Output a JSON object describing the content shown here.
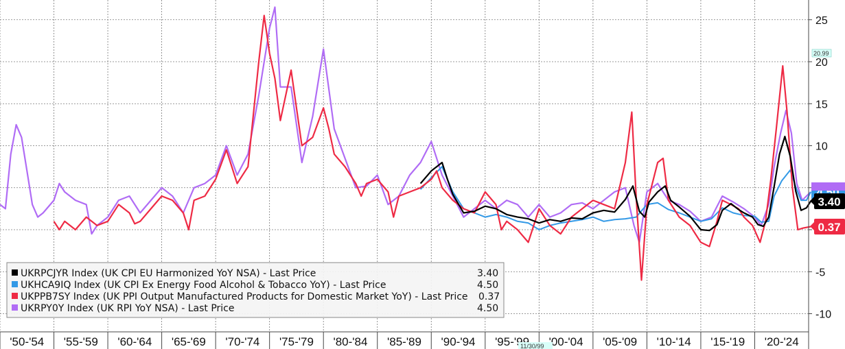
{
  "chart_data": {
    "type": "line",
    "x_range": [
      1950,
      2025
    ],
    "ylim": [
      -11,
      27
    ],
    "y_ticks": [
      -10,
      -5,
      0,
      5,
      10,
      15,
      20,
      25
    ],
    "y_tick_labels": [
      "-10",
      "-5",
      "0",
      "5",
      "10",
      "15",
      "20",
      "25"
    ],
    "x_tick_labels": [
      "'50-'54",
      "'55-'59",
      "'60-'64",
      "'65-'69",
      "'70-'74",
      "'75-'79",
      "'80-'84",
      "'85-'89",
      "'90-'94",
      "'95-'99",
      "'00-'04",
      "'05-'09",
      "'10-'14",
      "'15-'19",
      "'20-'24"
    ],
    "grid": true,
    "legend_position": "bottom-left",
    "annotations": {
      "max_marker": "20.99",
      "crosshair_date": "11/30/99"
    },
    "series": [
      {
        "name": "UKRPCJYR Index (UK CPI EU Harmonized YoY NSA) - Last Price",
        "last_value_label": "3.40",
        "last": 3.4,
        "color": "#000000",
        "points": [
          [
            1989,
            5.5
          ],
          [
            1990,
            7.0
          ],
          [
            1991,
            8.0
          ],
          [
            1991.5,
            6.0
          ],
          [
            1992,
            4.2
          ],
          [
            1993,
            2.0
          ],
          [
            1994,
            2.2
          ],
          [
            1995,
            2.8
          ],
          [
            1996,
            2.5
          ],
          [
            1997,
            1.8
          ],
          [
            1998,
            1.5
          ],
          [
            1999,
            1.3
          ],
          [
            2000,
            0.8
          ],
          [
            2001,
            1.2
          ],
          [
            2002,
            1.0
          ],
          [
            2003,
            1.4
          ],
          [
            2004,
            1.3
          ],
          [
            2005,
            2.0
          ],
          [
            2006,
            2.3
          ],
          [
            2007,
            2.1
          ],
          [
            2008,
            3.6
          ],
          [
            2008.7,
            5.2
          ],
          [
            2009.3,
            2.2
          ],
          [
            2009.8,
            1.5
          ],
          [
            2010.2,
            3.3
          ],
          [
            2011,
            4.5
          ],
          [
            2011.7,
            5.2
          ],
          [
            2012.2,
            3.5
          ],
          [
            2013,
            2.7
          ],
          [
            2014,
            1.6
          ],
          [
            2015,
            0.0
          ],
          [
            2015.8,
            -0.1
          ],
          [
            2016.5,
            0.6
          ],
          [
            2017,
            2.3
          ],
          [
            2017.8,
            3.1
          ],
          [
            2018.5,
            2.4
          ],
          [
            2019,
            2.0
          ],
          [
            2019.8,
            1.5
          ],
          [
            2020.3,
            0.6
          ],
          [
            2020.8,
            0.4
          ],
          [
            2021.3,
            1.5
          ],
          [
            2021.8,
            5.1
          ],
          [
            2022.3,
            9.0
          ],
          [
            2022.8,
            11.1
          ],
          [
            2023.3,
            8.7
          ],
          [
            2023.8,
            4.6
          ],
          [
            2024.3,
            2.3
          ],
          [
            2024.8,
            2.6
          ],
          [
            2025.2,
            3.4
          ]
        ]
      },
      {
        "name": "UKHCA9IQ Index (UK CPI Ex Energy Food Alcohol & Tobacco YoY) - Last Price",
        "last_value_label": "4.50",
        "last": 4.5,
        "color": "#3399e6",
        "points": [
          [
            1989,
            4.8
          ],
          [
            1990,
            6.2
          ],
          [
            1991,
            7.5
          ],
          [
            1992,
            4.5
          ],
          [
            1992.5,
            3.5
          ],
          [
            1993,
            2.5
          ],
          [
            1994,
            2.0
          ],
          [
            1995,
            1.5
          ],
          [
            1996,
            1.8
          ],
          [
            1997,
            1.5
          ],
          [
            1998,
            1.0
          ],
          [
            1999,
            0.8
          ],
          [
            2000,
            0.0
          ],
          [
            2001,
            0.5
          ],
          [
            2002,
            0.8
          ],
          [
            2003,
            1.0
          ],
          [
            2004,
            1.2
          ],
          [
            2005,
            1.5
          ],
          [
            2006,
            1.0
          ],
          [
            2007,
            1.2
          ],
          [
            2008,
            1.3
          ],
          [
            2009,
            1.5
          ],
          [
            2010,
            3.0
          ],
          [
            2011,
            3.2
          ],
          [
            2012,
            2.4
          ],
          [
            2013,
            2.0
          ],
          [
            2014,
            1.5
          ],
          [
            2015,
            1.0
          ],
          [
            2016,
            1.3
          ],
          [
            2017,
            2.6
          ],
          [
            2018,
            2.0
          ],
          [
            2019,
            1.7
          ],
          [
            2020,
            1.6
          ],
          [
            2020.6,
            0.9
          ],
          [
            2021.3,
            1.0
          ],
          [
            2021.8,
            4.0
          ],
          [
            2022.5,
            5.8
          ],
          [
            2023.3,
            7.1
          ],
          [
            2023.8,
            5.1
          ],
          [
            2024.3,
            3.5
          ],
          [
            2024.8,
            3.5
          ],
          [
            2025.2,
            4.5
          ]
        ]
      },
      {
        "name": "UKPPB7SY Index (UK PPI Output Manufactured Products for Domestic Market YoY) - Last Price",
        "last_value_label": "0.37",
        "last": 0.37,
        "color": "#ee2a44",
        "points": [
          [
            1955,
            1.0
          ],
          [
            1955.5,
            0.0
          ],
          [
            1956,
            1.0
          ],
          [
            1957,
            0.0
          ],
          [
            1958,
            1.5
          ],
          [
            1959,
            0.5
          ],
          [
            1960,
            1.0
          ],
          [
            1961,
            3.0
          ],
          [
            1962,
            2.0
          ],
          [
            1962.5,
            0.7
          ],
          [
            1963,
            1.0
          ],
          [
            1964,
            2.5
          ],
          [
            1965,
            4.0
          ],
          [
            1966,
            3.5
          ],
          [
            1967,
            2.0
          ],
          [
            1967.5,
            0.0
          ],
          [
            1968,
            3.5
          ],
          [
            1969,
            4.0
          ],
          [
            1970,
            6.0
          ],
          [
            1971,
            9.5
          ],
          [
            1972,
            5.5
          ],
          [
            1973,
            7.5
          ],
          [
            1974,
            20.0
          ],
          [
            1974.5,
            25.5
          ],
          [
            1975,
            21.0
          ],
          [
            1975.5,
            18.0
          ],
          [
            1976,
            13.0
          ],
          [
            1977,
            19.0
          ],
          [
            1977.5,
            14.5
          ],
          [
            1978,
            10.0
          ],
          [
            1979,
            11.0
          ],
          [
            1980,
            14.5
          ],
          [
            1980.5,
            12.0
          ],
          [
            1981,
            9.0
          ],
          [
            1982,
            7.5
          ],
          [
            1983,
            5.5
          ],
          [
            1983.5,
            4.0
          ],
          [
            1984,
            5.5
          ],
          [
            1985,
            6.0
          ],
          [
            1986,
            4.5
          ],
          [
            1986.5,
            1.5
          ],
          [
            1987,
            4.0
          ],
          [
            1988,
            4.5
          ],
          [
            1989,
            5.0
          ],
          [
            1990,
            6.0
          ],
          [
            1990.5,
            7.0
          ],
          [
            1991,
            5.0
          ],
          [
            1992,
            3.5
          ],
          [
            1993,
            2.5
          ],
          [
            1994,
            2.0
          ],
          [
            1995,
            4.5
          ],
          [
            1996,
            3.0
          ],
          [
            1996.5,
            0.0
          ],
          [
            1997,
            1.0
          ],
          [
            1998,
            0.0
          ],
          [
            1999,
            -1.5
          ],
          [
            1999.5,
            0.5
          ],
          [
            2000,
            2.5
          ],
          [
            2001,
            0.5
          ],
          [
            2002,
            -0.5
          ],
          [
            2003,
            1.5
          ],
          [
            2004,
            2.5
          ],
          [
            2005,
            3.5
          ],
          [
            2006,
            3.0
          ],
          [
            2007,
            2.5
          ],
          [
            2008,
            8.0
          ],
          [
            2008.6,
            14.0
          ],
          [
            2009,
            4.0
          ],
          [
            2009.5,
            -6.0
          ],
          [
            2010,
            3.0
          ],
          [
            2010.5,
            5.5
          ],
          [
            2011,
            8.0
          ],
          [
            2011.5,
            8.5
          ],
          [
            2012,
            3.5
          ],
          [
            2013,
            1.5
          ],
          [
            2014,
            0.5
          ],
          [
            2015,
            -1.5
          ],
          [
            2015.8,
            -2.0
          ],
          [
            2016.5,
            1.0
          ],
          [
            2017,
            3.5
          ],
          [
            2017.8,
            3.0
          ],
          [
            2018.5,
            2.5
          ],
          [
            2019,
            1.5
          ],
          [
            2019.8,
            0.5
          ],
          [
            2020.5,
            -1.5
          ],
          [
            2021,
            1.0
          ],
          [
            2021.5,
            6.0
          ],
          [
            2022,
            12.0
          ],
          [
            2022.6,
            19.5
          ],
          [
            2023,
            14.0
          ],
          [
            2023.5,
            5.0
          ],
          [
            2024,
            0.0
          ],
          [
            2024.5,
            0.2
          ],
          [
            2025.2,
            0.37
          ]
        ]
      },
      {
        "name": "UKRPY0Y Index (UK RPI YoY NSA) - Last Price",
        "last_value_label": "4.50",
        "last": 4.5,
        "color": "#b06cf5",
        "points": [
          [
            1950,
            3.0
          ],
          [
            1950.5,
            2.5
          ],
          [
            1951,
            9.0
          ],
          [
            1951.5,
            12.5
          ],
          [
            1952,
            11.0
          ],
          [
            1952.5,
            7.0
          ],
          [
            1953,
            3.0
          ],
          [
            1953.5,
            1.5
          ],
          [
            1954,
            2.0
          ],
          [
            1955,
            3.5
          ],
          [
            1955.5,
            5.5
          ],
          [
            1956,
            4.5
          ],
          [
            1957,
            3.5
          ],
          [
            1958,
            3.0
          ],
          [
            1958.5,
            -0.5
          ],
          [
            1959,
            0.5
          ],
          [
            1960,
            1.5
          ],
          [
            1961,
            3.5
          ],
          [
            1962,
            4.0
          ],
          [
            1963,
            2.0
          ],
          [
            1964,
            3.5
          ],
          [
            1965,
            5.0
          ],
          [
            1966,
            4.0
          ],
          [
            1967,
            2.0
          ],
          [
            1968,
            5.0
          ],
          [
            1969,
            5.5
          ],
          [
            1970,
            6.5
          ],
          [
            1971,
            10.0
          ],
          [
            1972,
            6.5
          ],
          [
            1973,
            9.0
          ],
          [
            1974,
            16.0
          ],
          [
            1975,
            24.0
          ],
          [
            1975.5,
            26.5
          ],
          [
            1976,
            17.0
          ],
          [
            1977,
            17.0
          ],
          [
            1978,
            8.0
          ],
          [
            1979,
            13.5
          ],
          [
            1980,
            21.5
          ],
          [
            1981,
            12.0
          ],
          [
            1982,
            8.5
          ],
          [
            1983,
            5.0
          ],
          [
            1984,
            5.2
          ],
          [
            1985,
            6.5
          ],
          [
            1986,
            3.0
          ],
          [
            1987,
            4.0
          ],
          [
            1988,
            6.5
          ],
          [
            1989,
            8.0
          ],
          [
            1990,
            10.5
          ],
          [
            1991,
            6.5
          ],
          [
            1992,
            4.0
          ],
          [
            1993,
            1.5
          ],
          [
            1994,
            2.5
          ],
          [
            1995,
            3.5
          ],
          [
            1996,
            2.5
          ],
          [
            1997,
            3.5
          ],
          [
            1998,
            3.0
          ],
          [
            1999,
            1.5
          ],
          [
            2000,
            3.0
          ],
          [
            2001,
            1.5
          ],
          [
            2002,
            2.0
          ],
          [
            2003,
            3.0
          ],
          [
            2004,
            3.2
          ],
          [
            2005,
            2.5
          ],
          [
            2006,
            3.5
          ],
          [
            2007,
            4.5
          ],
          [
            2008,
            5.0
          ],
          [
            2008.8,
            0.5
          ],
          [
            2009.3,
            -1.5
          ],
          [
            2010,
            4.5
          ],
          [
            2011,
            5.5
          ],
          [
            2012,
            3.5
          ],
          [
            2013,
            3.0
          ],
          [
            2014,
            2.2
          ],
          [
            2015,
            1.0
          ],
          [
            2016,
            1.5
          ],
          [
            2017,
            4.0
          ],
          [
            2018,
            3.3
          ],
          [
            2019,
            2.5
          ],
          [
            2020,
            1.5
          ],
          [
            2020.6,
            0.5
          ],
          [
            2021.3,
            3.0
          ],
          [
            2021.8,
            7.5
          ],
          [
            2022.4,
            11.5
          ],
          [
            2022.9,
            14.2
          ],
          [
            2023.4,
            11.5
          ],
          [
            2023.9,
            5.5
          ],
          [
            2024.4,
            3.5
          ],
          [
            2025.2,
            4.5
          ]
        ]
      }
    ]
  }
}
